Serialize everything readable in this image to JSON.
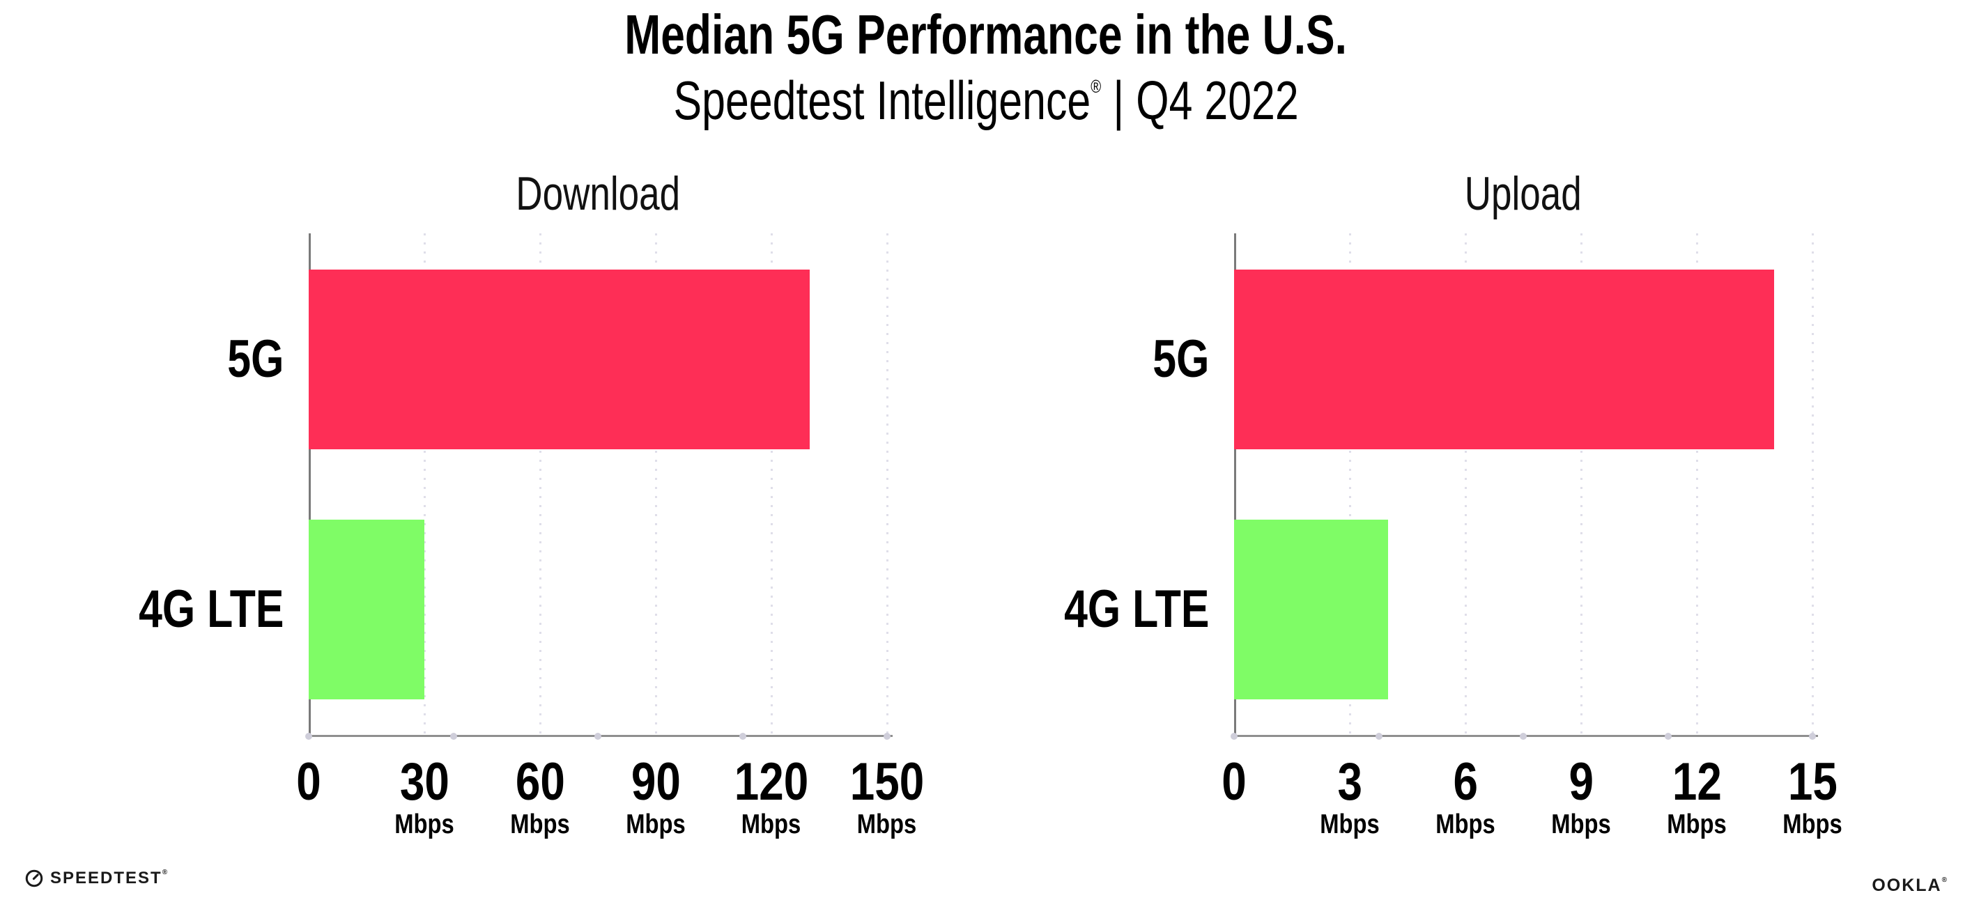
{
  "header": {
    "title": "Median 5G Performance in the U.S.",
    "subtitle": {
      "brand": "Speedtest Intelligence",
      "reg": "®",
      "separator": "|",
      "period": "Q4 2022"
    }
  },
  "chart_data": [
    {
      "type": "bar",
      "orientation": "horizontal",
      "title": "Download",
      "categories": [
        "5G",
        "4G LTE"
      ],
      "values": [
        130,
        30
      ],
      "value_unit": "Mbps",
      "xlim": [
        0,
        150
      ],
      "ticks": [
        "0",
        "30",
        "60",
        "90",
        "120",
        "150"
      ],
      "tick_unit": "Mbps",
      "grid": "dotted-vertical",
      "legend": "none"
    },
    {
      "type": "bar",
      "orientation": "horizontal",
      "title": "Upload",
      "categories": [
        "5G",
        "4G LTE"
      ],
      "values": [
        14,
        4
      ],
      "value_unit": "Mbps",
      "xlim": [
        0,
        15
      ],
      "ticks": [
        "0",
        "3",
        "6",
        "9",
        "12",
        "15"
      ],
      "tick_unit": "Mbps",
      "grid": "dotted-vertical",
      "legend": "none"
    }
  ],
  "colors": {
    "series": [
      "#FE2E56",
      "#7FFC66"
    ],
    "series0": "#FE2E56",
    "series1": "#7FFC66",
    "gridline": "#DFDEE9",
    "x_axis": "#8F8F8F",
    "y_axis": "#7A7A7A",
    "tick_dot": "#CFCEDA",
    "ink": "#000000"
  },
  "footer": {
    "speedtest": {
      "label": "SPEEDTEST",
      "trademark": "®"
    },
    "ookla": {
      "label": "OOKLA",
      "trademark": "®"
    }
  }
}
